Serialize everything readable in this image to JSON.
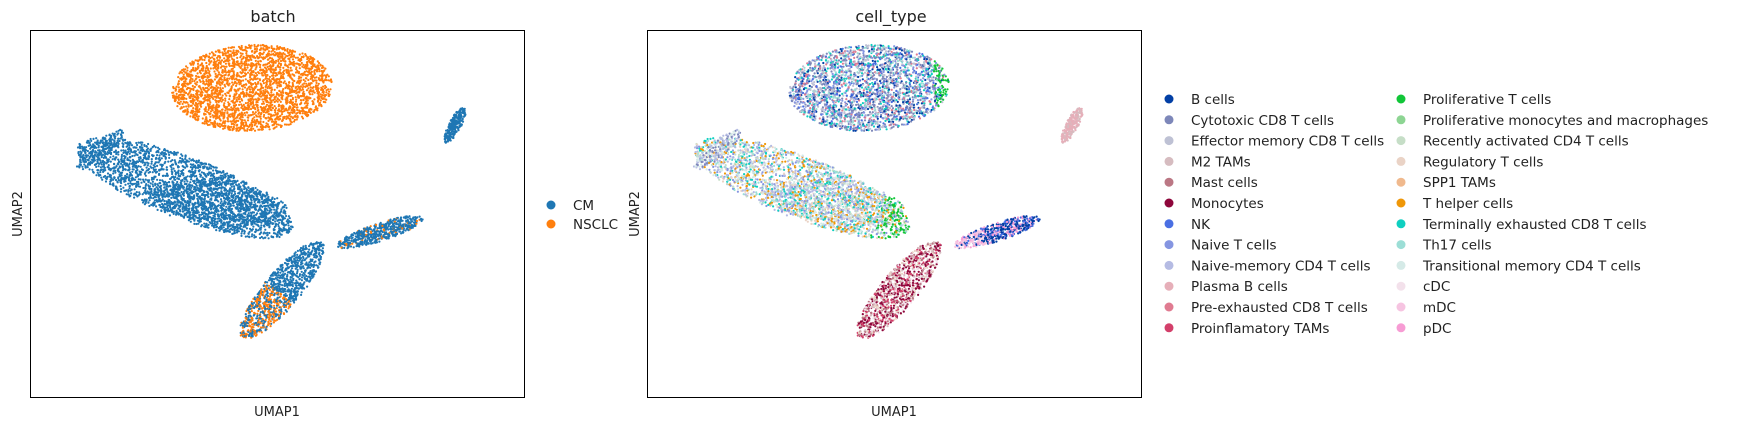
{
  "chart_data": [
    {
      "type": "scatter",
      "title": "batch",
      "xlabel": "UMAP1",
      "ylabel": "UMAP2",
      "ticks": "none",
      "grid": false,
      "legend_placement": "right",
      "series": [
        {
          "name": "CM",
          "color": "#1f77b4"
        },
        {
          "name": "NSCLC",
          "color": "#ff7f0e"
        }
      ]
    },
    {
      "type": "scatter",
      "title": "cell_type",
      "xlabel": "UMAP1",
      "ylabel": "UMAP2",
      "ticks": "none",
      "grid": false,
      "legend_placement": "right (two columns)",
      "series": [
        {
          "name": "B cells",
          "color": "#023fa5"
        },
        {
          "name": "Cytotoxic CD8 T cells",
          "color": "#7d87b9"
        },
        {
          "name": "Effector memory CD8 T cells",
          "color": "#bec1d4"
        },
        {
          "name": "M2 TAMs",
          "color": "#d6bcc0"
        },
        {
          "name": "Mast cells",
          "color": "#bb7784"
        },
        {
          "name": "Monocytes",
          "color": "#8e063b"
        },
        {
          "name": "NK",
          "color": "#4a6fe3"
        },
        {
          "name": "Naive T cells",
          "color": "#8595e1"
        },
        {
          "name": "Naive-memory CD4 T cells",
          "color": "#b5bbe3"
        },
        {
          "name": "Plasma B cells",
          "color": "#e6afb9"
        },
        {
          "name": "Pre-exhausted CD8 T cells",
          "color": "#e07b91"
        },
        {
          "name": "Proinflamatory TAMs",
          "color": "#d33f6a"
        },
        {
          "name": "Proliferative T cells",
          "color": "#11c638"
        },
        {
          "name": "Proliferative monocytes and macrophages",
          "color": "#8dd593"
        },
        {
          "name": "Recently activated CD4 T cells",
          "color": "#c6dec7"
        },
        {
          "name": "Regulatory T cells",
          "color": "#ead3c6"
        },
        {
          "name": "SPP1 TAMs",
          "color": "#f0b98d"
        },
        {
          "name": "T helper cells",
          "color": "#ef9708"
        },
        {
          "name": "Terminally exhausted CD8 T cells",
          "color": "#0fcfc0"
        },
        {
          "name": "Th17 cells",
          "color": "#9cded6"
        },
        {
          "name": "Transitional memory CD4 T cells",
          "color": "#d5eae7"
        },
        {
          "name": "cDC",
          "color": "#f3e1eb"
        },
        {
          "name": "mDC",
          "color": "#f6c4e1"
        },
        {
          "name": "pDC",
          "color": "#f79cd4"
        }
      ]
    }
  ]
}
